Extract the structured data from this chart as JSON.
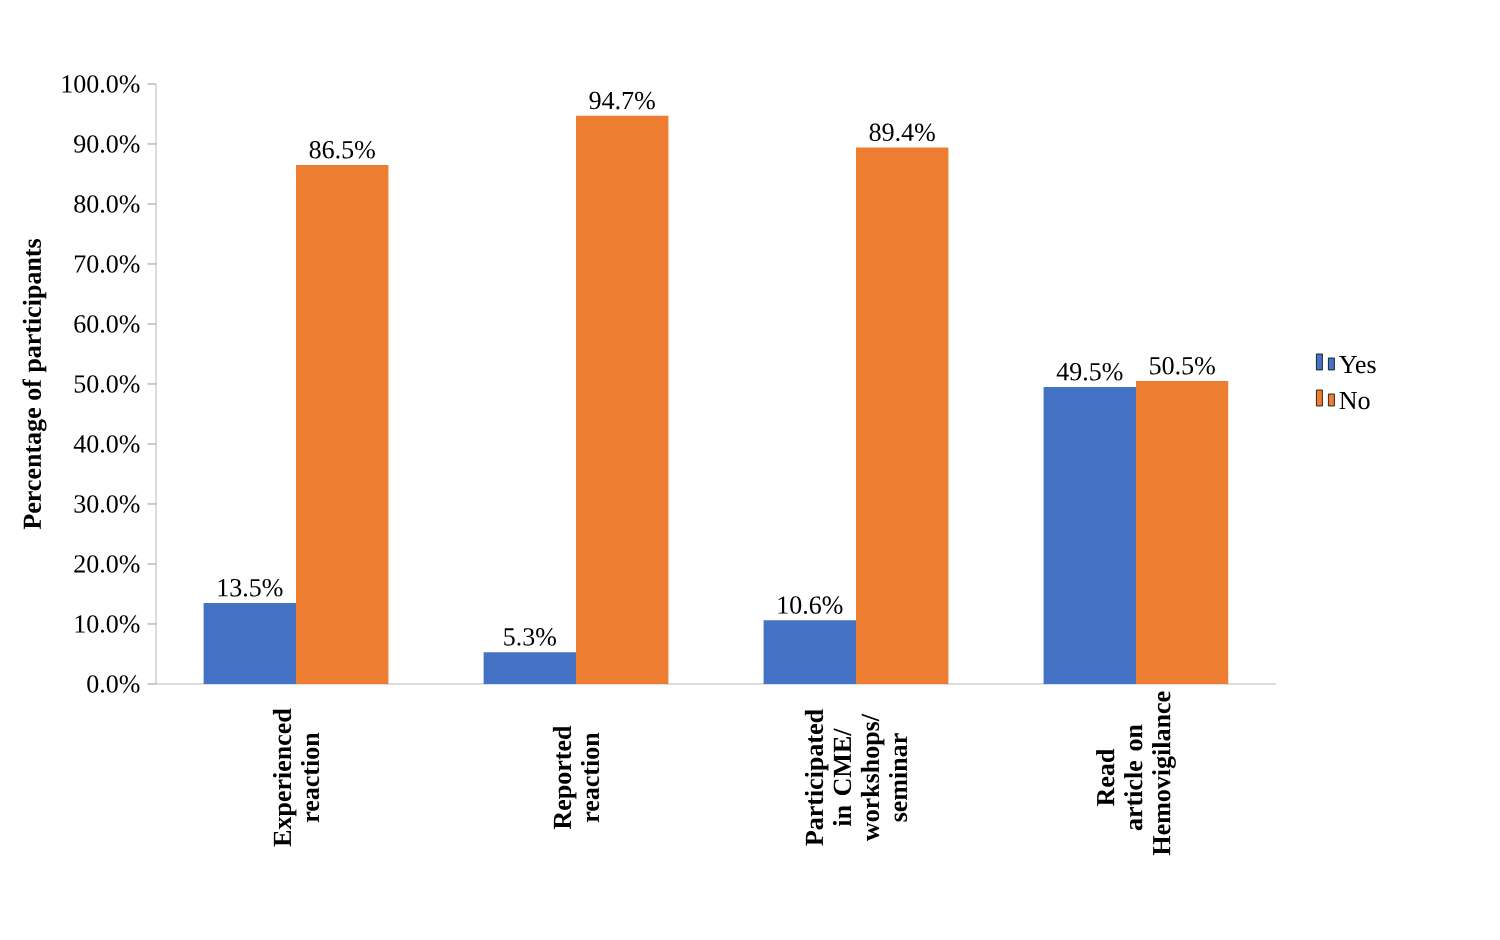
{
  "chart_data": {
    "type": "bar",
    "ylabel": "Percentage of participants",
    "categories": [
      "Experienced reaction",
      "Reported reaction",
      "Participated in CME/ workshops/ seminar",
      "Read article on Hemovigilance"
    ],
    "series": [
      {
        "name": "Yes",
        "color": "#4472c4",
        "values": [
          13.5,
          5.3,
          10.6,
          49.5
        ],
        "value_labels": [
          "13.5%",
          "5.3%",
          "10.6%",
          "49.5%"
        ]
      },
      {
        "name": "No",
        "color": "#ed7d31",
        "values": [
          86.5,
          94.7,
          89.4,
          50.5
        ],
        "value_labels": [
          "86.5%",
          "94.7%",
          "89.4%",
          "50.5%"
        ]
      }
    ],
    "ylim": [
      0,
      100
    ],
    "yticks": [
      {
        "value": 0,
        "label": "0.0%"
      },
      {
        "value": 10,
        "label": "10.0%"
      },
      {
        "value": 20,
        "label": "20.0%"
      },
      {
        "value": 30,
        "label": "30.0%"
      },
      {
        "value": 40,
        "label": "40.0%"
      },
      {
        "value": 50,
        "label": "50.0%"
      },
      {
        "value": 60,
        "label": "60.0%"
      },
      {
        "value": 70,
        "label": "70.0%"
      },
      {
        "value": 80,
        "label": "80.0%"
      },
      {
        "value": 90,
        "label": "90.0%"
      },
      {
        "value": 100,
        "label": "100.0%"
      }
    ],
    "grid": false,
    "legend": "right"
  }
}
